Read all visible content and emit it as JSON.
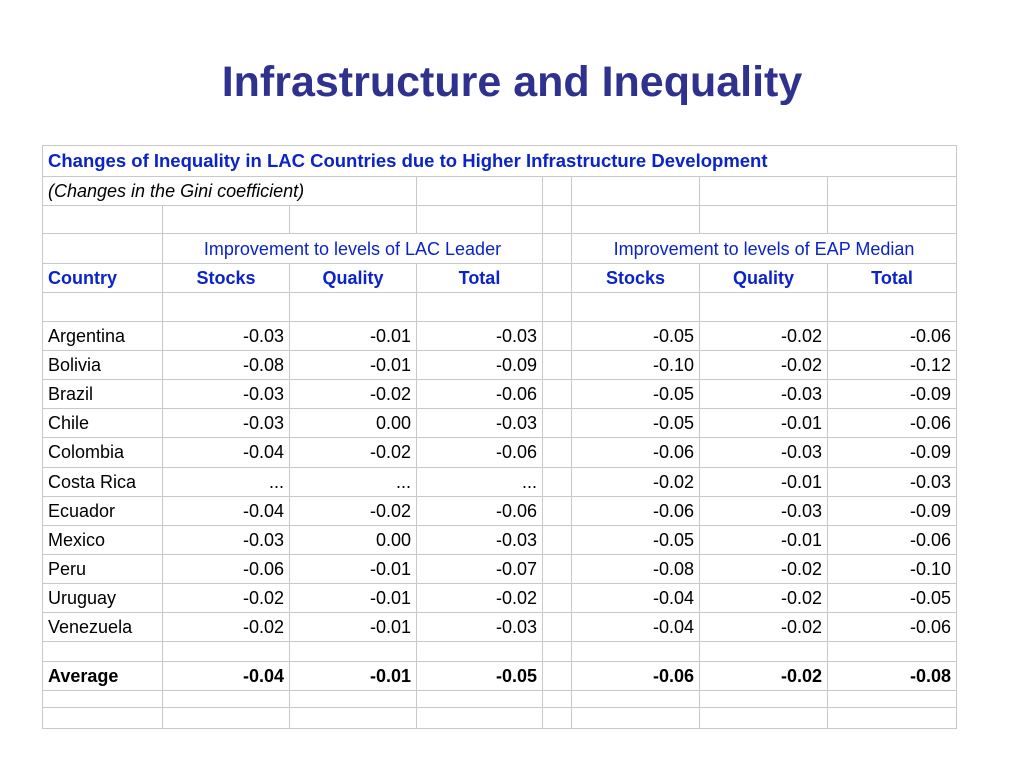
{
  "slide": {
    "title": "Infrastructure and Inequality"
  },
  "table": {
    "caption": "Changes of Inequality in LAC Countries due to Higher Infrastructure Development",
    "subcaption": "(Changes in the Gini coefficient)",
    "group_lac": "Improvement to levels of LAC Leader",
    "group_eap": "Improvement to levels of EAP Median",
    "headers": {
      "country": "Country",
      "stocks": "Stocks",
      "quality": "Quality",
      "total": "Total"
    },
    "rows": [
      {
        "country": "Argentina",
        "lac": [
          "-0.03",
          "-0.01",
          "-0.03"
        ],
        "eap": [
          "-0.05",
          "-0.02",
          "-0.06"
        ]
      },
      {
        "country": "Bolivia",
        "lac": [
          "-0.08",
          "-0.01",
          "-0.09"
        ],
        "eap": [
          "-0.10",
          "-0.02",
          "-0.12"
        ]
      },
      {
        "country": "Brazil",
        "lac": [
          "-0.03",
          "-0.02",
          "-0.06"
        ],
        "eap": [
          "-0.05",
          "-0.03",
          "-0.09"
        ]
      },
      {
        "country": "Chile",
        "lac": [
          "-0.03",
          "0.00",
          "-0.03"
        ],
        "eap": [
          "-0.05",
          "-0.01",
          "-0.06"
        ]
      },
      {
        "country": "Colombia",
        "lac": [
          "-0.04",
          "-0.02",
          "-0.06"
        ],
        "eap": [
          "-0.06",
          "-0.03",
          "-0.09"
        ]
      },
      {
        "country": "Costa Rica",
        "lac": [
          "...",
          "...",
          "..."
        ],
        "eap": [
          "-0.02",
          "-0.01",
          "-0.03"
        ]
      },
      {
        "country": "Ecuador",
        "lac": [
          "-0.04",
          "-0.02",
          "-0.06"
        ],
        "eap": [
          "-0.06",
          "-0.03",
          "-0.09"
        ]
      },
      {
        "country": "Mexico",
        "lac": [
          "-0.03",
          "0.00",
          "-0.03"
        ],
        "eap": [
          "-0.05",
          "-0.01",
          "-0.06"
        ]
      },
      {
        "country": "Peru",
        "lac": [
          "-0.06",
          "-0.01",
          "-0.07"
        ],
        "eap": [
          "-0.08",
          "-0.02",
          "-0.10"
        ]
      },
      {
        "country": "Uruguay",
        "lac": [
          "-0.02",
          "-0.01",
          "-0.02"
        ],
        "eap": [
          "-0.04",
          "-0.02",
          "-0.05"
        ]
      },
      {
        "country": "Venezuela",
        "lac": [
          "-0.02",
          "-0.01",
          "-0.03"
        ],
        "eap": [
          "-0.04",
          "-0.02",
          "-0.06"
        ]
      }
    ],
    "average": {
      "label": "Average",
      "lac": [
        "-0.04",
        "-0.01",
        "-0.05"
      ],
      "eap": [
        "-0.06",
        "-0.02",
        "-0.08"
      ]
    },
    "colors": {
      "title": "#2f318f",
      "header_text": "#0b23c8",
      "grid": "#c8c8c8",
      "rule": "#000000"
    }
  }
}
